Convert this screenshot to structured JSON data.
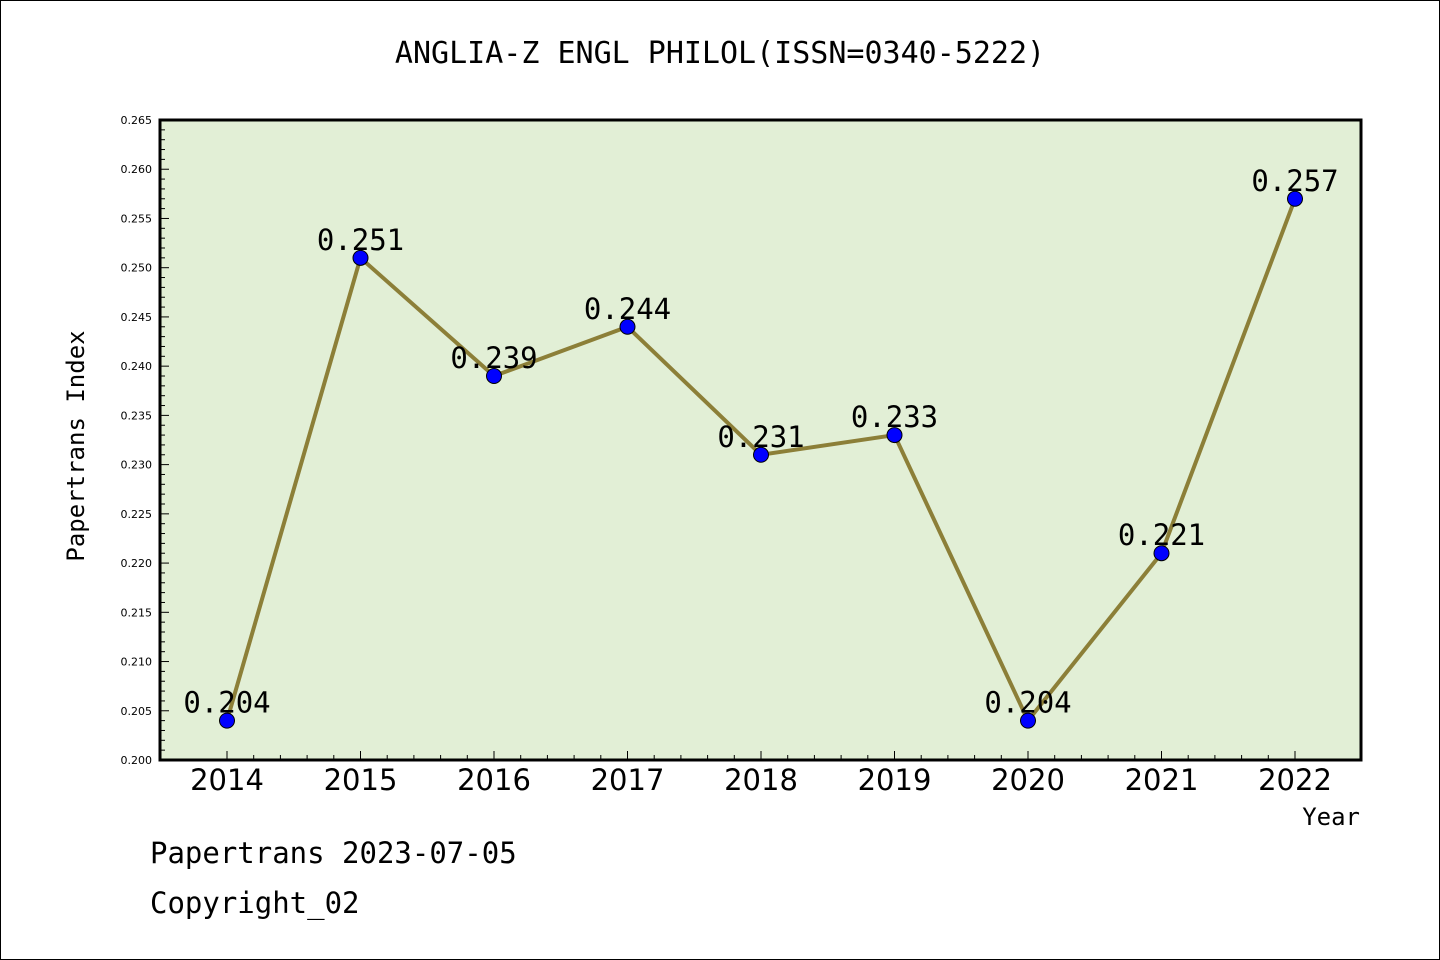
{
  "chart_data": {
    "type": "line",
    "title": "ANGLIA-Z ENGL PHILOL(ISSN=0340-5222)",
    "xlabel": "Year",
    "ylabel": "Papertrans Index",
    "categories": [
      "2014",
      "2015",
      "2016",
      "2017",
      "2018",
      "2019",
      "2020",
      "2021",
      "2022"
    ],
    "values": [
      0.204,
      0.251,
      0.239,
      0.244,
      0.231,
      0.233,
      0.204,
      0.221,
      0.257
    ],
    "data_labels": [
      "0.204",
      "0.251",
      "0.239",
      "0.244",
      "0.231",
      "0.233",
      "0.204",
      "0.221",
      "0.257"
    ],
    "ylim": [
      0.2,
      0.265
    ],
    "y_ticks": [
      "0.200",
      "0.205",
      "0.210",
      "0.215",
      "0.220",
      "0.225",
      "0.230",
      "0.235",
      "0.240",
      "0.245",
      "0.250",
      "0.255",
      "0.260",
      "0.265"
    ],
    "grid": false,
    "colors": {
      "plot_background": "#e2efd6",
      "line": "#8c7f38",
      "marker": "#0000ff"
    }
  },
  "footer": {
    "line1": "Papertrans 2023-07-05",
    "line2": "Copyright_02"
  }
}
